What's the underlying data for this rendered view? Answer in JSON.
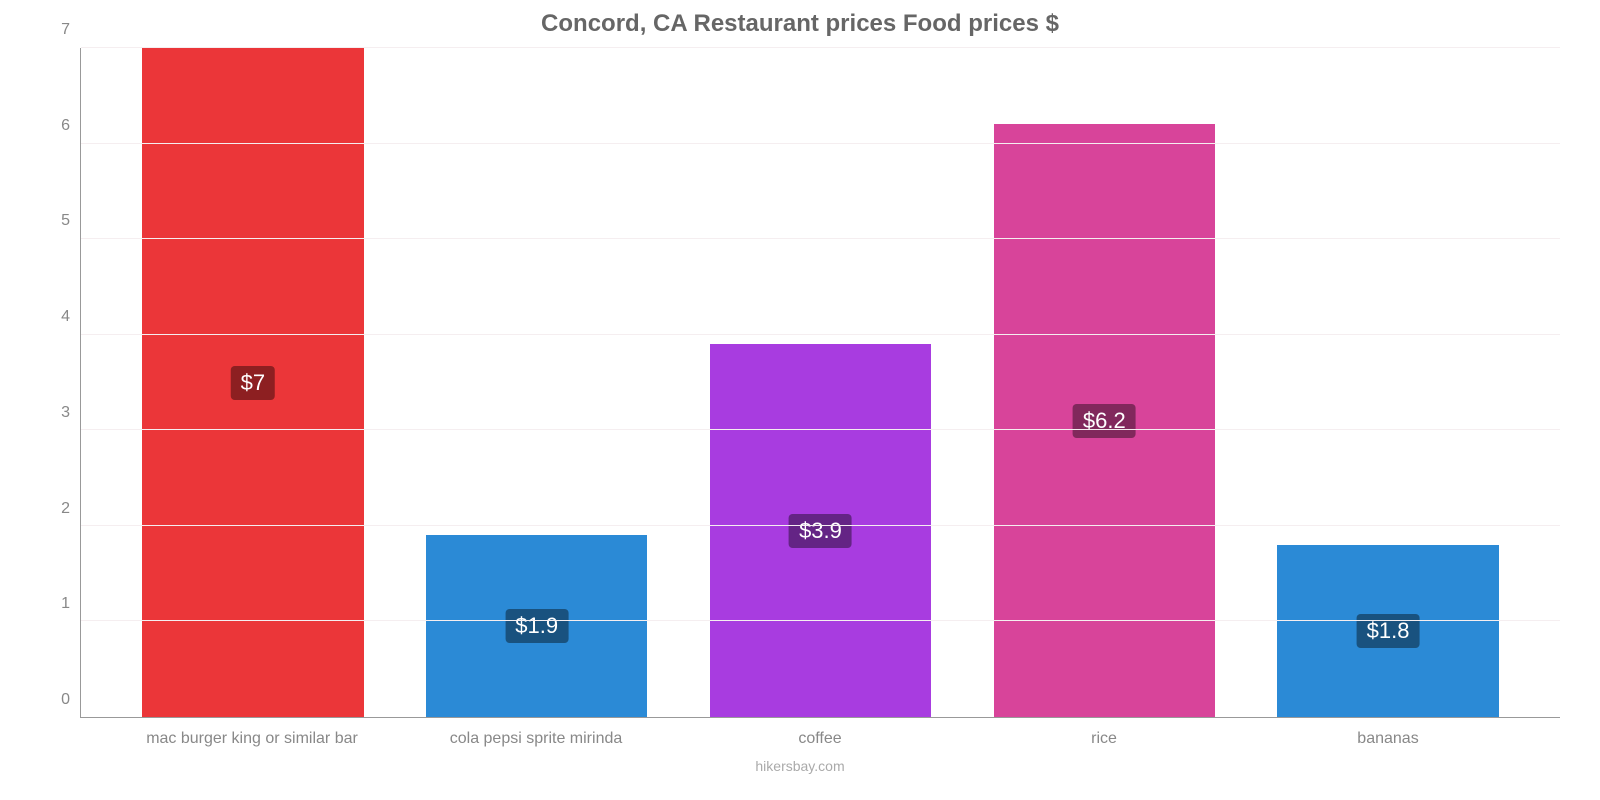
{
  "chart": {
    "type": "bar",
    "title": "Concord, CA Restaurant prices Food prices $",
    "title_fontsize": 24,
    "title_color": "#666666",
    "background_color": "#ffffff",
    "grid_color": "#f5eef0",
    "axis_color": "#999999",
    "tick_label_color": "#888888",
    "tick_fontsize": 16,
    "xlabel_fontsize": 16,
    "ylim": [
      0,
      7
    ],
    "ytick_step": 1,
    "yticks": [
      "0",
      "1",
      "2",
      "3",
      "4",
      "5",
      "6",
      "7"
    ],
    "bar_width_pct": 78,
    "categories": [
      "mac burger king or similar bar",
      "cola pepsi sprite mirinda",
      "coffee",
      "rice",
      "bananas"
    ],
    "values": [
      7.0,
      1.9,
      3.9,
      6.2,
      1.8
    ],
    "value_labels": [
      "$7",
      "$1.9",
      "$3.9",
      "$6.2",
      "$1.8"
    ],
    "bar_colors": [
      "#eb3639",
      "#2b8ad6",
      "#a83ce0",
      "#d8449a",
      "#2b8ad6"
    ],
    "label_bg_colors": [
      "#8d1f21",
      "#19527f",
      "#642485",
      "#81285c",
      "#19527f"
    ],
    "label_text_color": "#ffffff",
    "label_fontsize": 22,
    "footer": "hikersbay.com",
    "footer_color": "#aaaaaa",
    "footer_fontsize": 14
  }
}
